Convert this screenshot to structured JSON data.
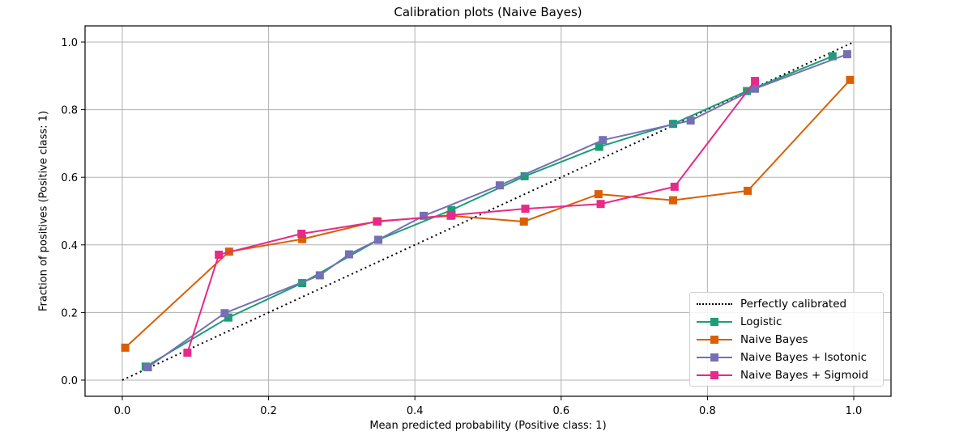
{
  "chart_data": {
    "type": "line",
    "title": "Calibration plots (Naive Bayes)",
    "xlabel": "Mean predicted probability (Positive class: 1)",
    "ylabel": "Fraction of positives (Positive class: 1)",
    "xlim": [
      -0.05,
      1.05
    ],
    "ylim": [
      -0.05,
      1.05
    ],
    "xticks": [
      "0.0",
      "0.2",
      "0.4",
      "0.6",
      "0.8",
      "1.0"
    ],
    "yticks": [
      "0.0",
      "0.2",
      "0.4",
      "0.6",
      "0.8",
      "1.0"
    ],
    "grid": true,
    "legend_position": "lower right",
    "reference_line": {
      "name": "Perfectly calibrated",
      "x": [
        0,
        1
      ],
      "y": [
        0,
        1
      ],
      "color": "#000000",
      "style": "dotted"
    },
    "series": [
      {
        "name": "Logistic",
        "color": "#1b9e77",
        "marker": "square",
        "x": [
          0.032,
          0.145,
          0.246,
          0.35,
          0.45,
          0.55,
          0.652,
          0.753,
          0.854,
          0.971
        ],
        "y": [
          0.04,
          0.185,
          0.287,
          0.415,
          0.503,
          0.603,
          0.69,
          0.758,
          0.855,
          0.958
        ]
      },
      {
        "name": "Naive Bayes",
        "color": "#d95f02",
        "marker": "square",
        "x": [
          0.004,
          0.146,
          0.246,
          0.348,
          0.449,
          0.549,
          0.651,
          0.753,
          0.855,
          0.995
        ],
        "y": [
          0.096,
          0.38,
          0.417,
          0.47,
          0.486,
          0.469,
          0.55,
          0.532,
          0.56,
          0.888
        ]
      },
      {
        "name": "Naive Bayes + Isotonic",
        "color": "#7570b3",
        "marker": "square",
        "x": [
          0.035,
          0.14,
          0.27,
          0.31,
          0.35,
          0.412,
          0.516,
          0.657,
          0.777,
          0.865,
          0.991
        ],
        "y": [
          0.038,
          0.198,
          0.31,
          0.372,
          0.415,
          0.486,
          0.576,
          0.71,
          0.768,
          0.862,
          0.964
        ]
      },
      {
        "name": "Naive Bayes + Sigmoid",
        "color": "#e7298a",
        "marker": "square",
        "x": [
          0.089,
          0.132,
          0.245,
          0.349,
          0.45,
          0.551,
          0.654,
          0.755,
          0.865
        ],
        "y": [
          0.081,
          0.371,
          0.433,
          0.469,
          0.488,
          0.507,
          0.521,
          0.572,
          0.885
        ]
      }
    ]
  },
  "legend": {
    "items": [
      {
        "label": "Perfectly calibrated",
        "color": "#000000",
        "style": "dotted"
      },
      {
        "label": "Logistic",
        "color": "#1b9e77",
        "style": "line-square"
      },
      {
        "label": "Naive Bayes",
        "color": "#d95f02",
        "style": "line-square"
      },
      {
        "label": "Naive Bayes + Isotonic",
        "color": "#7570b3",
        "style": "line-square"
      },
      {
        "label": "Naive Bayes + Sigmoid",
        "color": "#e7298a",
        "style": "line-square"
      }
    ]
  }
}
